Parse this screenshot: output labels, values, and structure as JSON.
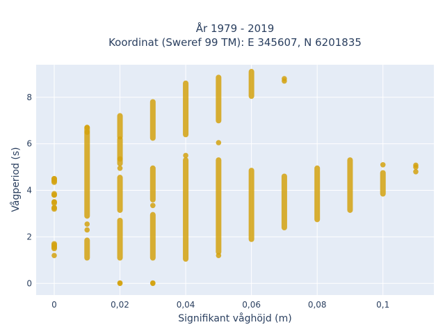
{
  "chart_data": {
    "type": "scatter",
    "title": [
      "År 1979 - 2019",
      "Koordinat (Sweref 99 TM): E 345607, N 6201835"
    ],
    "xlabel": "Signifikant våghöjd (m)",
    "ylabel": "Vågperiod (s)",
    "xlim": [
      -0.0055,
      0.1155
    ],
    "ylim": [
      -0.5,
      9.4
    ],
    "x_ticks": [
      0,
      0.02,
      0.04,
      0.06,
      0.08,
      0.1
    ],
    "x_tick_labels": [
      "0",
      "0,02",
      "0,04",
      "0,06",
      "0,08",
      "0,1"
    ],
    "y_ticks": [
      0,
      2,
      4,
      6,
      8
    ],
    "y_tick_labels": [
      "0",
      "2",
      "4",
      "6",
      "8"
    ],
    "grid": true,
    "marker_color": "#d4a20f",
    "plot_background": "#e5ecf6",
    "series": [
      {
        "x": 0,
        "segments": [
          [
            1.5,
            1.7
          ],
          [
            3.2,
            3.25
          ],
          [
            3.45,
            3.5
          ],
          [
            3.8,
            3.85
          ],
          [
            4.35,
            4.5
          ]
        ],
        "points": [
          1.2,
          1.55,
          1.65,
          3.25,
          3.5,
          3.8,
          4.4,
          4.5
        ]
      },
      {
        "x": 0.01,
        "segments": [
          [
            1.1,
            1.85
          ],
          [
            2.9,
            6.7
          ]
        ],
        "points": [
          2.3,
          2.55,
          6.5,
          6.7
        ]
      },
      {
        "x": 0.02,
        "segments": [
          [
            1.1,
            2.7
          ],
          [
            3.15,
            4.55
          ],
          [
            5.15,
            6.2
          ],
          [
            6.3,
            7.2
          ]
        ],
        "points": [
          0,
          0.02,
          4.95,
          5.35
        ]
      },
      {
        "x": 0.03,
        "segments": [
          [
            1.1,
            2.95
          ],
          [
            3.6,
            4.95
          ],
          [
            6.25,
            7.8
          ]
        ],
        "points": [
          0,
          0.02,
          3.35
        ]
      },
      {
        "x": 0.04,
        "segments": [
          [
            1.05,
            5.3
          ],
          [
            6.4,
            8.6
          ]
        ],
        "points": [
          5.5
        ]
      },
      {
        "x": 0.05,
        "segments": [
          [
            1.35,
            5.3
          ],
          [
            7.0,
            8.85
          ]
        ],
        "points": [
          1.2,
          6.05
        ]
      },
      {
        "x": 0.06,
        "segments": [
          [
            1.9,
            4.85
          ],
          [
            8.05,
            9.1
          ]
        ],
        "points": []
      },
      {
        "x": 0.07,
        "segments": [
          [
            2.4,
            4.6
          ]
        ],
        "points": [
          8.7,
          8.8
        ]
      },
      {
        "x": 0.08,
        "segments": [
          [
            2.75,
            4.95
          ]
        ],
        "points": []
      },
      {
        "x": 0.09,
        "segments": [
          [
            3.15,
            5.3
          ]
        ],
        "points": []
      },
      {
        "x": 0.1,
        "segments": [
          [
            3.85,
            4.75
          ]
        ],
        "points": [
          5.1
        ]
      },
      {
        "x": 0.11,
        "segments": [],
        "points": [
          4.8,
          5.0,
          5.08
        ]
      }
    ]
  }
}
